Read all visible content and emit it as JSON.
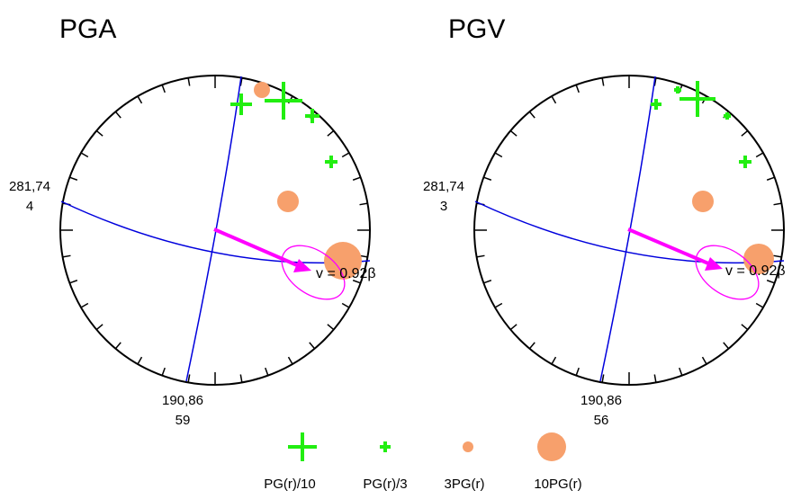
{
  "colors": {
    "circle": "#000000",
    "planes": "#0000dd",
    "arrow": "#ff00ff",
    "positive": "#22ee11",
    "negative": "#f7a06c"
  },
  "panels": [
    {
      "title": "PGA",
      "top_label_1": "281,74",
      "top_label_2": "4",
      "bottom_label_1": "190,86",
      "bottom_label_2": "59",
      "velocity": "v = 0.92β"
    },
    {
      "title": "PGV",
      "top_label_1": "281,74",
      "top_label_2": "3",
      "bottom_label_1": "190,86",
      "bottom_label_2": "56",
      "velocity": "v = 0.92β"
    }
  ],
  "legend": {
    "items": [
      {
        "label": "PG(r)/10",
        "symbol": "plus-large"
      },
      {
        "label": "PG(r)/3",
        "symbol": "plus-small"
      },
      {
        "label": "3PG(r)",
        "symbol": "circle-small"
      },
      {
        "label": "10PG(r)",
        "symbol": "circle-large"
      }
    ]
  }
}
